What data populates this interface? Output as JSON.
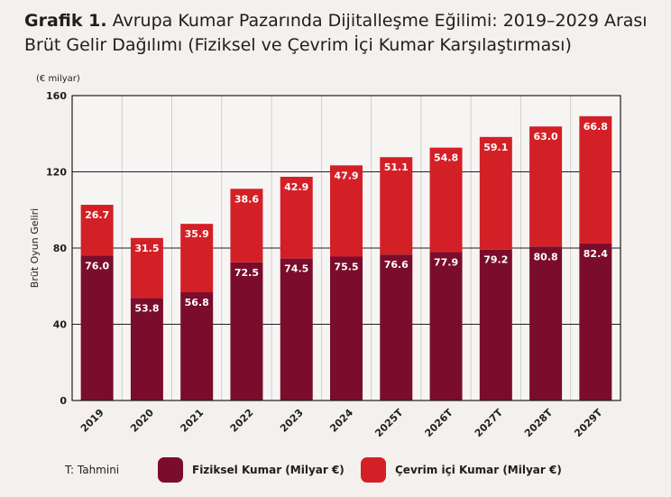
{
  "title": {
    "lead": "Grafik 1.",
    "text": "Avrupa Kumar Pazarında Dijitalleşme Eğilimi: 2019–2029 Arası Brüt Gelir Dağılımı (Fiziksel ve Çevrim İçi Kumar Karşılaştırması)"
  },
  "unit_label": "(€ milyar)",
  "legend": {
    "note": "T: Tahmini",
    "physical_label": "Fiziksel Kumar (Milyar €)",
    "online_label": "Çevrim içi Kumar (Milyar €)"
  },
  "chart_data": {
    "type": "bar",
    "stacked": true,
    "categories": [
      "2019",
      "2020",
      "2021",
      "2022",
      "2023",
      "2024",
      "2025T",
      "2026T",
      "2027T",
      "2028T",
      "2029T"
    ],
    "series": [
      {
        "name": "Fiziksel Kumar (Milyar €)",
        "color": "#7a0d2b",
        "values": [
          76.0,
          53.8,
          56.8,
          72.5,
          74.5,
          75.5,
          76.6,
          77.9,
          79.2,
          80.8,
          82.4
        ]
      },
      {
        "name": "Çevrim içi Kumar (Milyar €)",
        "color": "#d32027",
        "values": [
          26.7,
          31.5,
          35.9,
          38.6,
          42.9,
          47.9,
          51.1,
          54.8,
          59.1,
          63.0,
          66.8
        ]
      }
    ],
    "ylabel": "Brüt Oyun Geliri",
    "xlabel": "",
    "ylim": [
      0,
      160
    ],
    "yticks": [
      0,
      40,
      80,
      120,
      160
    ],
    "grid": true,
    "legend_position": "bottom",
    "data_labels": true
  }
}
